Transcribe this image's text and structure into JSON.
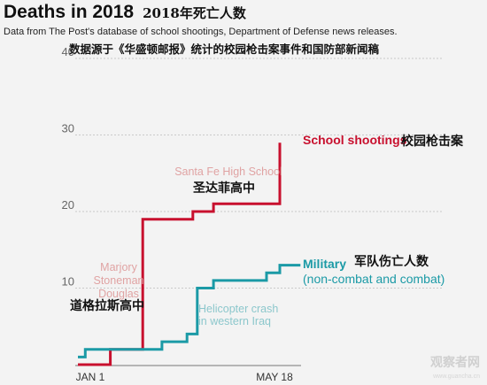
{
  "title": "Deaths in 2018",
  "title_zh": "2018年死亡人数",
  "subtitle": "Data from The Post's database of school shootings, Department of Defense news releases.",
  "subtitle_zh": "数据源于《华盛顿邮报》统计的校园枪击案事件和国防部新闻稿",
  "watermark": "观察者网",
  "watermark_url": "www.guancha.cn",
  "colors": {
    "school": "#c8102e",
    "military": "#1b9aa6",
    "grid": "#c9c9c9",
    "annotation_school": "#e0a3a3",
    "annotation_military": "#8cc7cc",
    "background": "#f3f3f3"
  },
  "chart_data": {
    "type": "line",
    "x_axis": {
      "tick_labels": [
        "JAN 1",
        "MAY 18"
      ]
    },
    "y_axis": {
      "min": 0,
      "max": 40,
      "ticks": [
        10,
        20,
        30,
        40
      ]
    },
    "grid": "horizontal dashed",
    "series": [
      {
        "name": "School shootings",
        "name_zh": "校园枪击案",
        "points": [
          [
            "2018-01-01",
            0
          ],
          [
            "2018-01-23",
            0
          ],
          [
            "2018-01-23",
            2
          ],
          [
            "2018-02-14",
            2
          ],
          [
            "2018-02-14",
            19
          ],
          [
            "2018-03-20",
            19
          ],
          [
            "2018-03-20",
            20
          ],
          [
            "2018-04-03",
            20
          ],
          [
            "2018-04-03",
            21
          ],
          [
            "2018-05-18",
            21
          ],
          [
            "2018-05-18",
            29
          ]
        ]
      },
      {
        "name": "Military",
        "sub": "(non-combat and combat)",
        "name_zh": "军队伤亡人数",
        "points": [
          [
            "2018-01-01",
            1
          ],
          [
            "2018-01-06",
            1
          ],
          [
            "2018-01-06",
            2
          ],
          [
            "2018-02-14",
            2
          ],
          [
            "2018-02-14",
            2
          ],
          [
            "2018-02-27",
            2
          ],
          [
            "2018-02-27",
            3
          ],
          [
            "2018-03-16",
            3
          ],
          [
            "2018-03-16",
            4
          ],
          [
            "2018-03-23",
            4
          ],
          [
            "2018-03-23",
            10
          ],
          [
            "2018-04-03",
            10
          ],
          [
            "2018-04-03",
            11
          ],
          [
            "2018-05-09",
            11
          ],
          [
            "2018-05-09",
            12
          ],
          [
            "2018-05-18",
            12
          ],
          [
            "2018-05-18",
            13
          ],
          [
            "2018-06-01",
            13
          ]
        ]
      }
    ],
    "annotations": [
      {
        "lines": [
          "Santa Fe High School"
        ],
        "lines_zh": "圣达菲高中"
      },
      {
        "lines": [
          "Marjory",
          "Stoneman",
          "Douglas"
        ],
        "lines_zh": "道格拉斯高中"
      },
      {
        "lines": [
          "Helicopter crash",
          "in western Iraq"
        ]
      }
    ]
  }
}
